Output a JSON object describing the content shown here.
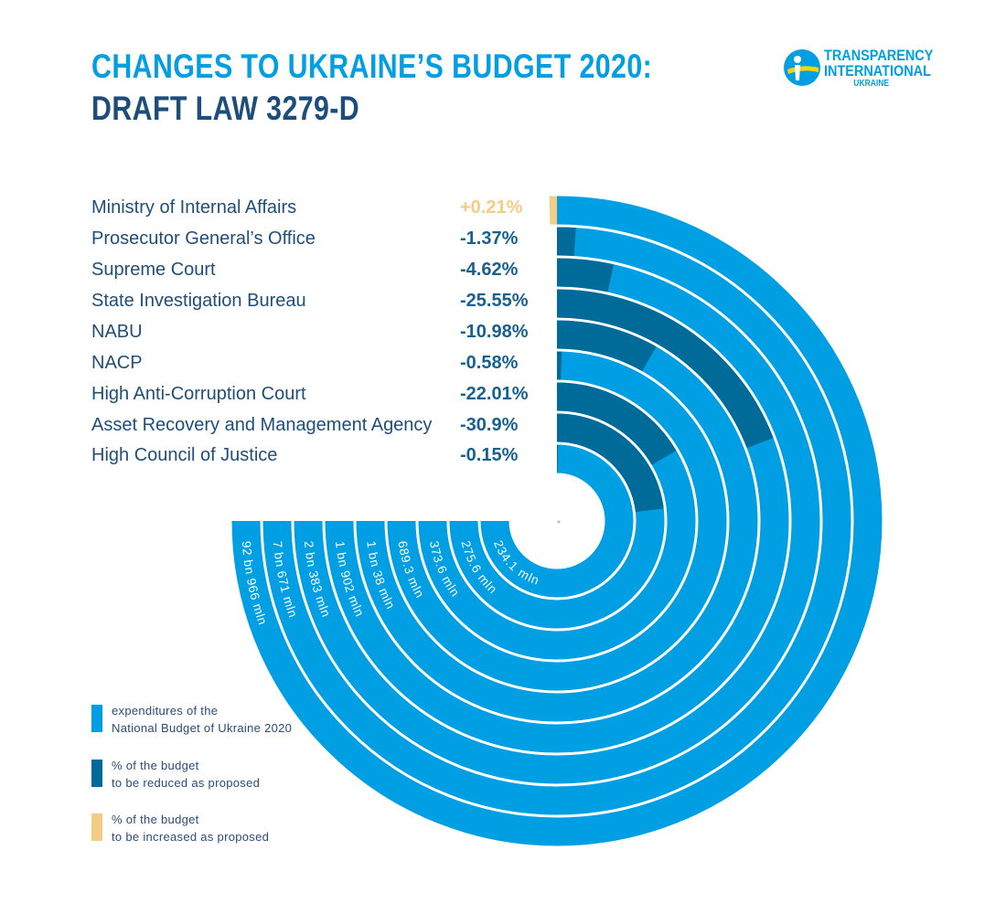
{
  "header": {
    "title_line1": "CHANGES TO UKRAINE’S BUDGET 2020:",
    "title_line2": "DRAFT LAW 3279-D",
    "logo": {
      "line1": "TRANSPARENCY",
      "line2": "INTERNATIONAL",
      "line3": "UKRAINE"
    }
  },
  "colors": {
    "expenditure": "#009fe3",
    "reduced": "#006a99",
    "increased": "#f3cd85",
    "title": "#009fe3",
    "subtitle": "#1d4d7a"
  },
  "chart_data": {
    "type": "radial-bar",
    "title": "Changes to Ukraine's Budget 2020: Draft Law 3279-D",
    "categories": [
      "Ministry of Internal Affairs",
      "Prosecutor General’s Office",
      "Supreme Court",
      "State Investigation Bureau",
      "NABU",
      "NACP",
      "High Anti-Corruption Court",
      "Asset Recovery and Management Agency",
      "High Council of Justice"
    ],
    "change_percent": [
      0.21,
      -1.37,
      -4.62,
      -25.55,
      -10.98,
      -0.58,
      -22.01,
      -30.9,
      -0.15
    ],
    "change_labels": [
      "+0.21%",
      "-1.37%",
      "-4.62%",
      "-25.55%",
      "-10.98%",
      "-0.58%",
      "-22.01%",
      "-30.9%",
      "-0.15%"
    ],
    "expenditure_labels": [
      "92 bn 966 mln",
      "7 bn 671 mln",
      "2 bn 383 mln",
      "1 bn 902 mln",
      "1 bn 38 mln",
      "689.3 mln",
      "373.6 mln",
      "275.6 mln",
      "234.1 mln"
    ],
    "expenditure_uah_mln": [
      92966,
      7671,
      2383,
      1902,
      1038,
      689.3,
      373.6,
      275.6,
      234.1
    ]
  },
  "legend": [
    {
      "line1": "expenditures of the",
      "line2": "National Budget of Ukraine 2020",
      "color": "#009fe3"
    },
    {
      "line1": "% of the budget",
      "line2": "to be reduced as proposed",
      "color": "#006a99"
    },
    {
      "line1": "% of the budget",
      "line2": "to be increased as proposed",
      "color": "#f3cd85"
    }
  ]
}
